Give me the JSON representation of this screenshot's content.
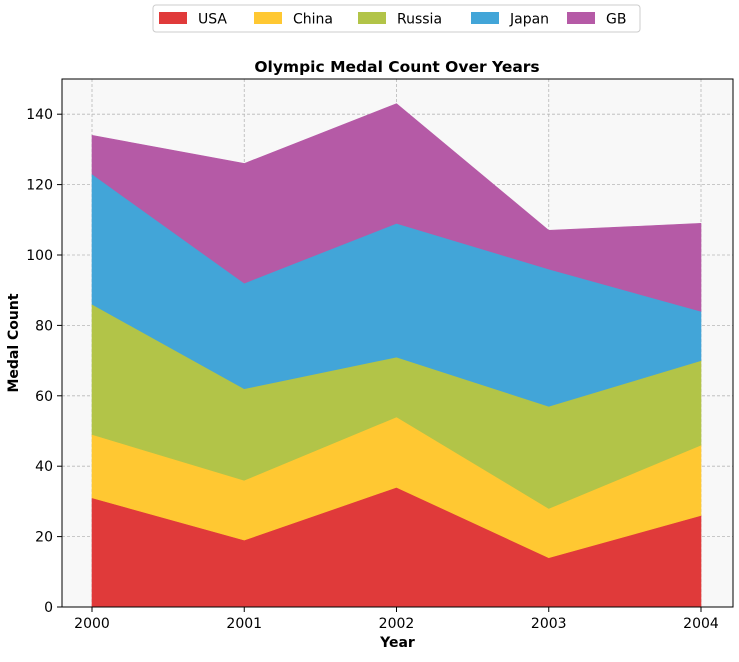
{
  "chart_data": {
    "type": "area",
    "stacked": true,
    "title": "Olympic Medal Count Over Years",
    "xlabel": "Year",
    "ylabel": "Medal Count",
    "x": [
      "2000",
      "2001",
      "2002",
      "2003",
      "2004"
    ],
    "ylim": [
      0,
      150
    ],
    "yticks": [
      0,
      20,
      40,
      60,
      80,
      100,
      120,
      140
    ],
    "grid": true,
    "legend_position": "top-center",
    "series": [
      {
        "name": "USA",
        "color": "#e03a3a",
        "values": [
          31,
          19,
          34,
          14,
          26
        ]
      },
      {
        "name": "China",
        "color": "#ffc832",
        "values": [
          18,
          17,
          20,
          14,
          20
        ]
      },
      {
        "name": "Russia",
        "color": "#b2c448",
        "values": [
          37,
          26,
          17,
          29,
          24
        ]
      },
      {
        "name": "Japan",
        "color": "#42a5d8",
        "values": [
          37,
          30,
          38,
          39,
          14
        ]
      },
      {
        "name": "GB",
        "color": "#b55aa6",
        "values": [
          11,
          34,
          34,
          11,
          25
        ]
      }
    ]
  }
}
